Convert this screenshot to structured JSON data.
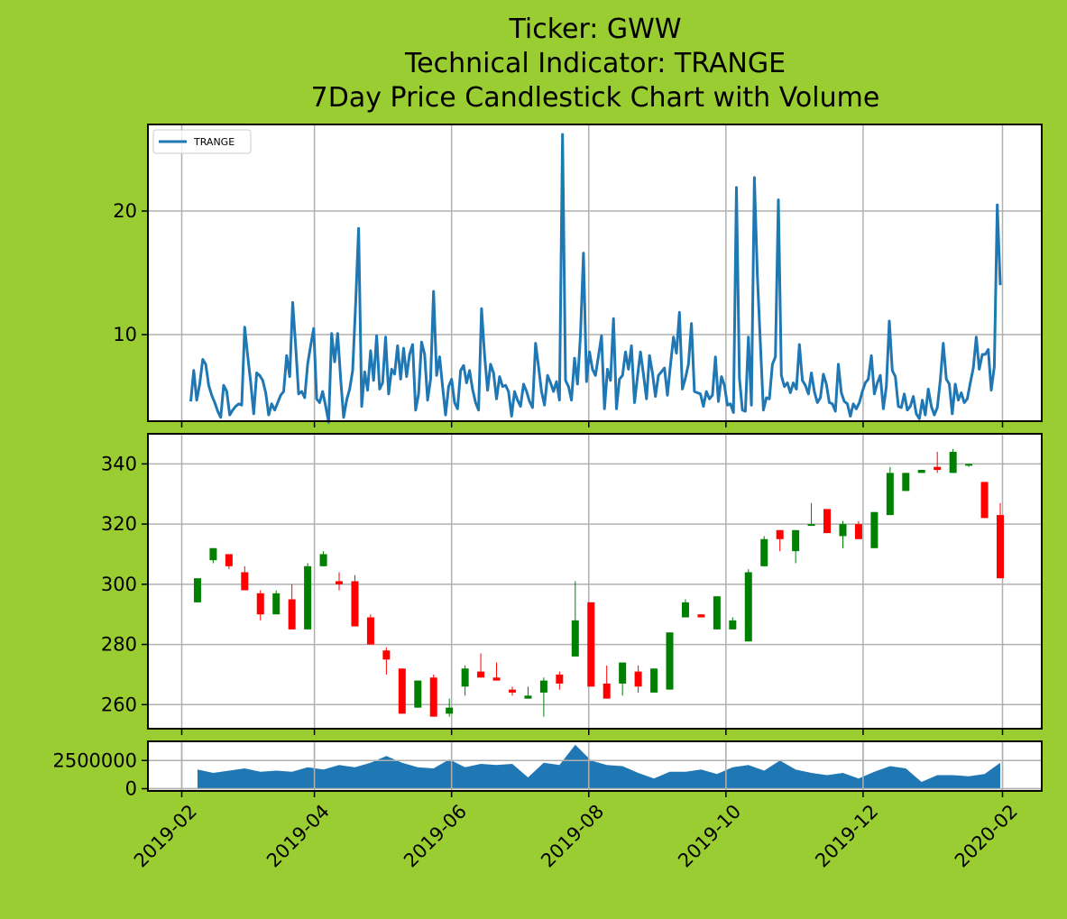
{
  "title": {
    "line1": "Ticker: GWW",
    "line2": "Technical Indicator: TRANGE",
    "line3": "7Day Price Candlestick Chart with Volume"
  },
  "colors": {
    "background": "#9acd32",
    "line": "#1f77b4",
    "up": "#008000",
    "down": "#ff0000",
    "grid": "#b0b0b0",
    "volume": "#1f77b4"
  },
  "chart_data": [
    {
      "type": "line",
      "panel": "indicator",
      "legend": {
        "entries": [
          "TRANGE"
        ],
        "placement": "upper-left"
      },
      "grid": true,
      "ylim": [
        3,
        27
      ],
      "yticks": [
        10,
        20
      ],
      "x_start": "2019-02-05",
      "x_end": "2020-01-31",
      "series": [
        {
          "name": "TRANGE",
          "values": [
            4.6,
            7.1,
            4.7,
            6.0,
            8.0,
            7.6,
            5.9,
            5.1,
            4.5,
            3.8,
            3.3,
            5.9,
            5.4,
            3.5,
            3.9,
            4.2,
            4.4,
            4.3,
            10.6,
            8.3,
            6.1,
            3.6,
            6.9,
            6.7,
            6.3,
            5.3,
            3.5,
            4.4,
            3.9,
            4.5,
            5.1,
            5.4,
            8.3,
            6.6,
            12.6,
            9.1,
            5.2,
            5.4,
            4.9,
            7.6,
            9.1,
            10.5,
            4.8,
            4.5,
            5.4,
            4.2,
            2.9,
            10.1,
            7.8,
            10.1,
            6.4,
            3.3,
            4.7,
            5.6,
            7.1,
            12.5,
            18.6,
            4.2,
            7.0,
            5.5,
            8.7,
            6.3,
            9.9,
            5.6,
            6.1,
            9.8,
            5.2,
            7.2,
            6.8,
            9.1,
            6.4,
            8.9,
            6.6,
            8.4,
            9.2,
            3.9,
            5.2,
            9.4,
            8.4,
            4.7,
            6.4,
            13.5,
            6.7,
            8.2,
            5.8,
            3.5,
            5.8,
            6.4,
            4.5,
            4.0,
            7.1,
            7.5,
            6.1,
            7.1,
            5.6,
            4.5,
            3.9,
            12.1,
            8.4,
            5.5,
            7.6,
            6.9,
            4.8,
            6.6,
            5.8,
            5.9,
            5.4,
            3.4,
            5.4,
            4.7,
            4.2,
            6.0,
            5.4,
            4.6,
            4.1,
            9.3,
            7.4,
            5.4,
            4.3,
            6.7,
            6.1,
            5.4,
            6.2,
            4.7,
            26.2,
            6.3,
            5.8,
            4.7,
            8.1,
            6.0,
            10.0,
            16.6,
            6.2,
            8.6,
            7.2,
            6.7,
            8.3,
            9.9,
            4.0,
            7.2,
            6.3,
            11.3,
            4.0,
            6.4,
            6.7,
            8.6,
            7.2,
            9.1,
            4.5,
            6.6,
            8.6,
            6.8,
            4.8,
            8.3,
            6.9,
            5.0,
            6.7,
            7.0,
            7.3,
            5.1,
            7.5,
            9.8,
            8.5,
            11.8,
            5.6,
            6.5,
            7.6,
            10.9,
            5.4,
            5.3,
            5.2,
            4.2,
            5.4,
            4.8,
            5.1,
            8.2,
            4.6,
            6.6,
            5.9,
            4.3,
            4.4,
            3.7,
            21.9,
            6.5,
            3.9,
            3.8,
            9.8,
            4.3,
            22.7,
            14.8,
            9.2,
            3.9,
            4.9,
            4.8,
            7.6,
            8.2,
            20.9,
            6.7,
            5.8,
            6.1,
            5.3,
            6.1,
            5.6,
            9.2,
            6.3,
            5.9,
            5.2,
            6.9,
            5.4,
            4.5,
            4.9,
            6.8,
            6.0,
            4.5,
            4.4,
            3.8,
            7.6,
            5.3,
            4.6,
            4.4,
            3.4,
            4.4,
            4.0,
            4.5,
            5.4,
            6.1,
            6.4,
            8.3,
            5.2,
            6.1,
            6.7,
            4.0,
            5.8,
            11.1,
            7.1,
            6.6,
            4.2,
            4.1,
            5.2,
            3.9,
            4.2,
            5.0,
            3.6,
            3.2,
            4.7,
            3.5,
            5.6,
            4.2,
            3.5,
            4.1,
            6.3,
            9.3,
            6.4,
            6.0,
            3.6,
            6.0,
            4.7,
            5.3,
            4.5,
            4.8,
            6.1,
            7.3,
            9.8,
            7.2,
            8.4,
            8.4,
            8.8,
            5.5,
            7.4,
            20.5,
            14.0
          ]
        }
      ],
      "xlabel": "",
      "ylabel": ""
    },
    {
      "type": "candlestick",
      "panel": "price",
      "grid": true,
      "ylim": [
        252,
        350
      ],
      "yticks": [
        260,
        280,
        300,
        320,
        340
      ],
      "x": [
        "2019-02-08",
        "2019-02-15",
        "2019-02-22",
        "2019-03-01",
        "2019-03-08",
        "2019-03-15",
        "2019-03-22",
        "2019-03-29",
        "2019-04-05",
        "2019-04-12",
        "2019-04-19",
        "2019-04-26",
        "2019-05-03",
        "2019-05-10",
        "2019-05-17",
        "2019-05-24",
        "2019-05-31",
        "2019-06-07",
        "2019-06-14",
        "2019-06-21",
        "2019-06-28",
        "2019-07-05",
        "2019-07-12",
        "2019-07-19",
        "2019-07-26",
        "2019-08-02",
        "2019-08-09",
        "2019-08-16",
        "2019-08-23",
        "2019-08-30",
        "2019-09-06",
        "2019-09-13",
        "2019-09-20",
        "2019-09-27",
        "2019-10-04",
        "2019-10-11",
        "2019-10-18",
        "2019-10-25",
        "2019-11-01",
        "2019-11-08",
        "2019-11-15",
        "2019-11-22",
        "2019-11-29",
        "2019-12-06",
        "2019-12-13",
        "2019-12-20",
        "2019-12-27",
        "2020-01-03",
        "2020-01-10",
        "2020-01-17",
        "2020-01-24",
        "2020-01-31"
      ],
      "open": [
        294,
        308,
        310,
        304,
        297,
        290,
        295,
        285,
        306,
        301,
        301,
        289,
        278,
        272,
        259,
        269,
        257,
        266,
        271,
        269,
        265,
        262,
        264,
        270,
        276,
        294,
        267,
        267,
        271,
        264,
        265,
        289,
        290,
        285,
        285,
        281,
        306,
        318,
        311,
        320,
        325,
        316,
        320,
        312,
        323,
        331,
        337,
        339,
        337,
        340,
        334,
        323
      ],
      "high": [
        302,
        312,
        310,
        306,
        298,
        298,
        300,
        307,
        311,
        304,
        303,
        290,
        279,
        272,
        268,
        270,
        262,
        273,
        277,
        274,
        266,
        266,
        269,
        271,
        301,
        294,
        273,
        274,
        273,
        272,
        284,
        295,
        290,
        296,
        289,
        305,
        316,
        318,
        318,
        327,
        325,
        321,
        321,
        324,
        339,
        337,
        338,
        344,
        345,
        340,
        334,
        327
      ],
      "low": [
        294,
        307,
        305,
        298,
        288,
        290,
        285,
        285,
        306,
        298,
        286,
        280,
        270,
        257,
        259,
        256,
        256,
        263,
        269,
        268,
        263,
        262,
        256,
        265,
        276,
        266,
        262,
        263,
        264,
        264,
        265,
        289,
        289,
        285,
        285,
        281,
        306,
        311,
        307,
        320,
        317,
        312,
        315,
        312,
        323,
        331,
        337,
        337,
        337,
        339,
        322,
        302
      ],
      "close": [
        302,
        312,
        306,
        298,
        290,
        297,
        285,
        306,
        310,
        300,
        286,
        280,
        275,
        257,
        268,
        256,
        259,
        272,
        269,
        268,
        264,
        263,
        268,
        267,
        288,
        266,
        262,
        274,
        266,
        272,
        284,
        294,
        289,
        296,
        288,
        304,
        315,
        315,
        318,
        320,
        317,
        320,
        315,
        324,
        337,
        337,
        338,
        338,
        344,
        340,
        322,
        302
      ],
      "xlabel": "",
      "ylabel": ""
    },
    {
      "type": "area",
      "panel": "volume",
      "grid": true,
      "ylim": [
        -200000,
        4200000
      ],
      "yticks": [
        0,
        2500000
      ],
      "yticklabels": [
        "0",
        "2500000"
      ],
      "xticks": [
        "2019-02",
        "2019-04",
        "2019-06",
        "2019-08",
        "2019-10",
        "2019-12",
        "2020-02"
      ],
      "x": [
        "2019-02-08",
        "2019-02-15",
        "2019-02-22",
        "2019-03-01",
        "2019-03-08",
        "2019-03-15",
        "2019-03-22",
        "2019-03-29",
        "2019-04-05",
        "2019-04-12",
        "2019-04-19",
        "2019-04-26",
        "2019-05-03",
        "2019-05-10",
        "2019-05-17",
        "2019-05-24",
        "2019-05-31",
        "2019-06-07",
        "2019-06-14",
        "2019-06-21",
        "2019-06-28",
        "2019-07-05",
        "2019-07-12",
        "2019-07-19",
        "2019-07-26",
        "2019-08-02",
        "2019-08-09",
        "2019-08-16",
        "2019-08-23",
        "2019-08-30",
        "2019-09-06",
        "2019-09-13",
        "2019-09-20",
        "2019-09-27",
        "2019-10-04",
        "2019-10-11",
        "2019-10-18",
        "2019-10-25",
        "2019-11-01",
        "2019-11-08",
        "2019-11-15",
        "2019-11-22",
        "2019-11-29",
        "2019-12-06",
        "2019-12-13",
        "2019-12-20",
        "2019-12-27",
        "2020-01-03",
        "2020-01-10",
        "2020-01-17",
        "2020-01-24",
        "2020-01-31"
      ],
      "values": [
        1700000,
        1400000,
        1600000,
        1800000,
        1500000,
        1600000,
        1500000,
        1900000,
        1700000,
        2100000,
        1900000,
        2300000,
        2900000,
        2300000,
        1900000,
        1800000,
        2600000,
        1900000,
        2200000,
        2100000,
        2200000,
        1000000,
        2300000,
        2100000,
        3900000,
        2500000,
        2100000,
        2000000,
        1400000,
        900000,
        1500000,
        1500000,
        1700000,
        1300000,
        1900000,
        2100000,
        1600000,
        2500000,
        1700000,
        1400000,
        1200000,
        1400000,
        900000,
        1500000,
        2000000,
        1800000,
        600000,
        1200000,
        1200000,
        1100000,
        1300000,
        2300000
      ],
      "xlabel": "",
      "ylabel": ""
    }
  ]
}
